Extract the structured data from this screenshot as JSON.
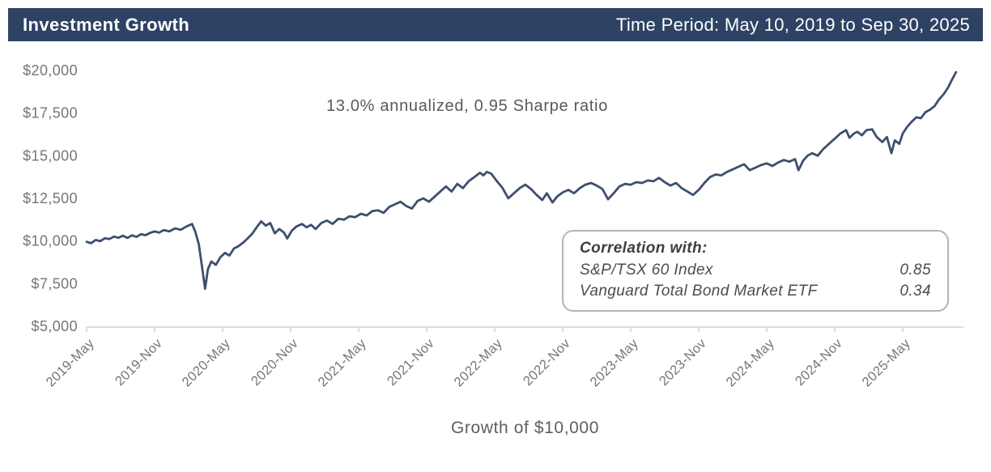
{
  "header": {
    "title": "Investment Growth",
    "time_period": "Time Period: May 10, 2019 to Sep 30, 2025",
    "bg_color": "#2e4263",
    "text_color": "#ffffff"
  },
  "annotation": "13.0% annualized, 0.95 Sharpe ratio",
  "correlation_box": {
    "title": "Correlation with:",
    "rows": [
      {
        "name": "S&P/TSX 60 Index",
        "value": "0.85"
      },
      {
        "name": "Vanguard Total Bond Market ETF",
        "value": "0.34"
      }
    ]
  },
  "chart_data": {
    "type": "line",
    "title": "",
    "xlabel": "Growth of $10,000",
    "ylabel": "",
    "x_unit": "months since 2019-05-10",
    "xlim": [
      0,
      77.4
    ],
    "ylim": [
      5000,
      20500
    ],
    "grid": false,
    "legend": null,
    "line_color": "#3d4f6d",
    "axis_color": "#c9c9c9",
    "tick_label_color": "#767676",
    "y_ticks": [
      5000,
      7500,
      10000,
      12500,
      15000,
      17500,
      20000
    ],
    "y_tick_labels": [
      "$5,000",
      "$7,500",
      "$10,000",
      "$12,500",
      "$15,000",
      "$17,500",
      "$20,000"
    ],
    "x_tick_positions": [
      0,
      6,
      12,
      18,
      24,
      30,
      36,
      42,
      48,
      54,
      60,
      66,
      72
    ],
    "x_tick_labels": [
      "2019-May",
      "2019-Nov",
      "2020-May",
      "2020-Nov",
      "2021-May",
      "2021-Nov",
      "2022-May",
      "2022-Nov",
      "2023-May",
      "2023-Nov",
      "2024-May",
      "2024-Nov",
      "2025-May"
    ],
    "series": [
      {
        "name": "Growth of $10,000",
        "points": [
          [
            0,
            9950
          ],
          [
            0.4,
            9870
          ],
          [
            0.8,
            10060
          ],
          [
            1.2,
            9990
          ],
          [
            1.6,
            10160
          ],
          [
            2,
            10110
          ],
          [
            2.4,
            10260
          ],
          [
            2.8,
            10190
          ],
          [
            3.2,
            10310
          ],
          [
            3.6,
            10180
          ],
          [
            4,
            10330
          ],
          [
            4.4,
            10240
          ],
          [
            4.8,
            10400
          ],
          [
            5.2,
            10340
          ],
          [
            5.6,
            10480
          ],
          [
            6,
            10560
          ],
          [
            6.4,
            10490
          ],
          [
            6.8,
            10640
          ],
          [
            7.3,
            10570
          ],
          [
            7.8,
            10740
          ],
          [
            8.3,
            10660
          ],
          [
            8.8,
            10850
          ],
          [
            9.3,
            11000
          ],
          [
            9.6,
            10520
          ],
          [
            9.9,
            9800
          ],
          [
            10.2,
            8400
          ],
          [
            10.45,
            7200
          ],
          [
            10.7,
            8350
          ],
          [
            11,
            8800
          ],
          [
            11.4,
            8600
          ],
          [
            11.8,
            9050
          ],
          [
            12.2,
            9300
          ],
          [
            12.6,
            9150
          ],
          [
            13,
            9560
          ],
          [
            13.4,
            9700
          ],
          [
            13.8,
            9900
          ],
          [
            14.2,
            10150
          ],
          [
            14.6,
            10420
          ],
          [
            15,
            10800
          ],
          [
            15.4,
            11150
          ],
          [
            15.8,
            10900
          ],
          [
            16.2,
            11050
          ],
          [
            16.6,
            10450
          ],
          [
            17,
            10700
          ],
          [
            17.4,
            10500
          ],
          [
            17.7,
            10150
          ],
          [
            18.1,
            10600
          ],
          [
            18.5,
            10850
          ],
          [
            19,
            11000
          ],
          [
            19.4,
            10800
          ],
          [
            19.8,
            10950
          ],
          [
            20.2,
            10700
          ],
          [
            20.7,
            11050
          ],
          [
            21.2,
            11200
          ],
          [
            21.7,
            11000
          ],
          [
            22.2,
            11300
          ],
          [
            22.7,
            11250
          ],
          [
            23.2,
            11450
          ],
          [
            23.7,
            11400
          ],
          [
            24.2,
            11600
          ],
          [
            24.7,
            11500
          ],
          [
            25.2,
            11750
          ],
          [
            25.7,
            11800
          ],
          [
            26.2,
            11650
          ],
          [
            26.7,
            12000
          ],
          [
            27.2,
            12150
          ],
          [
            27.7,
            12300
          ],
          [
            28.2,
            12050
          ],
          [
            28.7,
            11900
          ],
          [
            29.2,
            12350
          ],
          [
            29.7,
            12500
          ],
          [
            30.2,
            12300
          ],
          [
            30.7,
            12600
          ],
          [
            31.2,
            12900
          ],
          [
            31.7,
            13200
          ],
          [
            32.2,
            12900
          ],
          [
            32.7,
            13350
          ],
          [
            33.2,
            13100
          ],
          [
            33.7,
            13500
          ],
          [
            34.2,
            13750
          ],
          [
            34.7,
            14000
          ],
          [
            35,
            13850
          ],
          [
            35.3,
            14050
          ],
          [
            35.7,
            13950
          ],
          [
            36.2,
            13500
          ],
          [
            36.7,
            13100
          ],
          [
            37.2,
            12500
          ],
          [
            37.7,
            12800
          ],
          [
            38.2,
            13100
          ],
          [
            38.7,
            13300
          ],
          [
            39.2,
            13050
          ],
          [
            39.7,
            12700
          ],
          [
            40.2,
            12400
          ],
          [
            40.6,
            12800
          ],
          [
            41.1,
            12260
          ],
          [
            41.5,
            12600
          ],
          [
            42,
            12850
          ],
          [
            42.5,
            13000
          ],
          [
            43,
            12800
          ],
          [
            43.5,
            13100
          ],
          [
            44,
            13300
          ],
          [
            44.5,
            13400
          ],
          [
            45,
            13250
          ],
          [
            45.5,
            13050
          ],
          [
            46,
            12450
          ],
          [
            46.5,
            12800
          ],
          [
            47,
            13200
          ],
          [
            47.5,
            13350
          ],
          [
            48,
            13300
          ],
          [
            48.5,
            13450
          ],
          [
            49,
            13400
          ],
          [
            49.5,
            13550
          ],
          [
            50,
            13500
          ],
          [
            50.5,
            13700
          ],
          [
            51,
            13450
          ],
          [
            51.5,
            13250
          ],
          [
            52,
            13400
          ],
          [
            52.5,
            13100
          ],
          [
            53,
            12900
          ],
          [
            53.5,
            12700
          ],
          [
            54,
            13000
          ],
          [
            54.5,
            13400
          ],
          [
            55,
            13750
          ],
          [
            55.5,
            13900
          ],
          [
            56,
            13850
          ],
          [
            56.5,
            14050
          ],
          [
            57,
            14200
          ],
          [
            57.5,
            14350
          ],
          [
            58,
            14500
          ],
          [
            58.5,
            14150
          ],
          [
            59,
            14300
          ],
          [
            59.5,
            14450
          ],
          [
            60,
            14550
          ],
          [
            60.5,
            14400
          ],
          [
            61,
            14600
          ],
          [
            61.5,
            14750
          ],
          [
            62,
            14650
          ],
          [
            62.5,
            14800
          ],
          [
            62.8,
            14150
          ],
          [
            63.2,
            14700
          ],
          [
            63.6,
            15000
          ],
          [
            64,
            15150
          ],
          [
            64.5,
            15000
          ],
          [
            65,
            15400
          ],
          [
            65.5,
            15700
          ],
          [
            66,
            16000
          ],
          [
            66.5,
            16300
          ],
          [
            67,
            16500
          ],
          [
            67.3,
            16050
          ],
          [
            67.7,
            16300
          ],
          [
            68,
            16400
          ],
          [
            68.4,
            16200
          ],
          [
            68.8,
            16500
          ],
          [
            69.3,
            16550
          ],
          [
            69.7,
            16100
          ],
          [
            70.2,
            15800
          ],
          [
            70.6,
            16100
          ],
          [
            71,
            15150
          ],
          [
            71.3,
            15900
          ],
          [
            71.7,
            15700
          ],
          [
            72,
            16300
          ],
          [
            72.4,
            16700
          ],
          [
            72.8,
            17000
          ],
          [
            73.2,
            17250
          ],
          [
            73.6,
            17200
          ],
          [
            74,
            17550
          ],
          [
            74.4,
            17700
          ],
          [
            74.8,
            17900
          ],
          [
            75.2,
            18300
          ],
          [
            75.6,
            18600
          ],
          [
            76,
            19000
          ],
          [
            76.3,
            19400
          ],
          [
            76.7,
            19900
          ]
        ]
      }
    ]
  }
}
